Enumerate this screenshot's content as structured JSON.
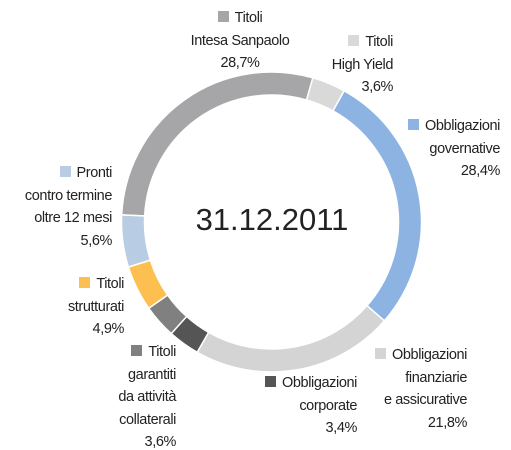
{
  "chart_data": {
    "type": "donut",
    "title": "31.12.2011",
    "categories": [
      "Titoli\nIntesa Sanpaolo",
      "Titoli\nHigh Yield",
      "Obbligazioni\ngovernative",
      "Obbligazioni\nfinanziarie\ne assicurative",
      "Obbligazioni\ncorporate",
      "Titoli\ngarantiti\nda attività\ncollaterali",
      "Titoli\nstrutturati",
      "Pronti\ncontro termine\noltre 12 mesi"
    ],
    "values": [
      28.7,
      3.6,
      28.4,
      21.8,
      3.4,
      3.6,
      4.9,
      5.6
    ],
    "value_labels": [
      "28,7%",
      "3,6%",
      "28,4%",
      "21,8%",
      "3,4%",
      "3,6%",
      "4,9%",
      "5,6%"
    ],
    "colors": [
      "#a6a6a8",
      "#d9d9d9",
      "#8db3e2",
      "#d4d4d4",
      "#555555",
      "#808080",
      "#fdbf4f",
      "#b8cce4"
    ]
  }
}
